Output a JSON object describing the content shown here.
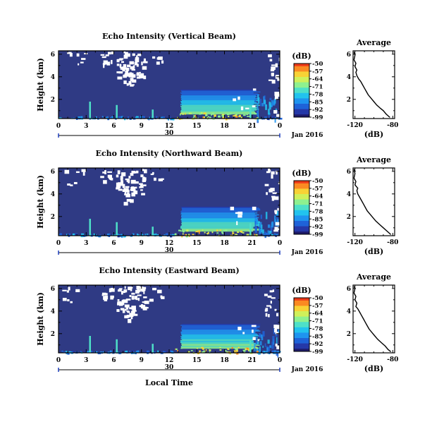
{
  "colors": {
    "background_fill": "#2f3a84",
    "missing_data": "#ffffff",
    "colormap": [
      "#1e1b6a",
      "#2538a8",
      "#1f63d8",
      "#1f94ef",
      "#22c3ee",
      "#4ee0c8",
      "#8ef18f",
      "#d0f05a",
      "#f8d235",
      "#fb8a22",
      "#ee3a18"
    ]
  },
  "chart_data": [
    {
      "type": "heatmap",
      "title": "Echo Intensity (Vertical Beam)",
      "ylabel": "Height (km)",
      "xlabel": "",
      "x_ticks": [
        "0",
        "3",
        "6",
        "9",
        "12",
        "15",
        "18",
        "21",
        "0"
      ],
      "xlim_hours": [
        0,
        24
      ],
      "date_label": "30",
      "month_label": "Jan 2016",
      "y_ticks": [
        "2",
        "4",
        "6"
      ],
      "ylim_km": [
        0.3,
        6.3
      ],
      "colorbar": {
        "label": "(dB)",
        "ticks": [
          "-50",
          "-57",
          "-64",
          "-71",
          "-78",
          "-85",
          "-92",
          "-99"
        ],
        "range": [
          -99,
          -50
        ]
      },
      "average_profile": {
        "title": "Average",
        "xlabel": "(dB)",
        "x_ticks": [
          "-120",
          "-80"
        ],
        "y_ticks": [
          "2",
          "4",
          "6"
        ],
        "xlim": [
          -122,
          -78
        ],
        "points": [
          [
            -83,
            0.4
          ],
          [
            -87,
            0.7
          ],
          [
            -90,
            1.0
          ],
          [
            -93,
            1.2
          ],
          [
            -97,
            1.5
          ],
          [
            -100,
            1.8
          ],
          [
            -103,
            2.1
          ],
          [
            -106,
            2.4
          ],
          [
            -108,
            2.7
          ],
          [
            -110,
            3.0
          ],
          [
            -112,
            3.3
          ],
          [
            -114,
            3.6
          ],
          [
            -116,
            3.8
          ],
          [
            -118,
            4.1
          ],
          [
            -119,
            4.4
          ],
          [
            -118,
            4.6
          ],
          [
            -120,
            4.9
          ],
          [
            -119,
            5.2
          ],
          [
            -121,
            5.5
          ],
          [
            -120,
            5.9
          ],
          [
            -121,
            6.2
          ]
        ]
      }
    },
    {
      "type": "heatmap",
      "title": "Echo Intensity (Northward Beam)",
      "ylabel": "Height (km)",
      "xlabel": "",
      "x_ticks": [
        "0",
        "3",
        "6",
        "9",
        "12",
        "15",
        "18",
        "21",
        "0"
      ],
      "xlim_hours": [
        0,
        24
      ],
      "date_label": "30",
      "month_label": "Jan 2016",
      "y_ticks": [
        "2",
        "4",
        "6"
      ],
      "ylim_km": [
        0.3,
        6.3
      ],
      "colorbar": {
        "label": "(dB)",
        "ticks": [
          "-50",
          "-57",
          "-64",
          "-71",
          "-78",
          "-85",
          "-92",
          "-99"
        ],
        "range": [
          -99,
          -50
        ]
      },
      "average_profile": {
        "title": "Average",
        "xlabel": "(dB)",
        "x_ticks": [
          "-120",
          "-80"
        ],
        "y_ticks": [
          "2",
          "4",
          "6"
        ],
        "xlim": [
          -122,
          -78
        ],
        "points": [
          [
            -82,
            0.4
          ],
          [
            -86,
            0.7
          ],
          [
            -90,
            1.0
          ],
          [
            -94,
            1.3
          ],
          [
            -98,
            1.6
          ],
          [
            -101,
            1.9
          ],
          [
            -104,
            2.2
          ],
          [
            -107,
            2.5
          ],
          [
            -109,
            2.8
          ],
          [
            -111,
            3.1
          ],
          [
            -113,
            3.4
          ],
          [
            -115,
            3.7
          ],
          [
            -117,
            4.0
          ],
          [
            -118,
            4.3
          ],
          [
            -117,
            4.5
          ],
          [
            -120,
            4.8
          ],
          [
            -119,
            5.1
          ],
          [
            -121,
            5.4
          ],
          [
            -120,
            5.8
          ],
          [
            -121,
            6.2
          ]
        ]
      }
    },
    {
      "type": "heatmap",
      "title": "Echo Intensity (Eastward Beam)",
      "ylabel": "Height (km)",
      "xlabel": "Local Time",
      "x_ticks": [
        "0",
        "3",
        "6",
        "9",
        "12",
        "15",
        "18",
        "21",
        "0"
      ],
      "xlim_hours": [
        0,
        24
      ],
      "date_label": "30",
      "month_label": "Jan 2016",
      "y_ticks": [
        "2",
        "4",
        "6"
      ],
      "ylim_km": [
        0.3,
        6.3
      ],
      "colorbar": {
        "label": "(dB)",
        "ticks": [
          "-50",
          "-57",
          "-64",
          "-71",
          "-78",
          "-85",
          "-92",
          "-99"
        ],
        "range": [
          -99,
          -50
        ]
      },
      "average_profile": {
        "title": "Average",
        "xlabel": "(dB)",
        "x_ticks": [
          "-120",
          "-80"
        ],
        "y_ticks": [
          "2",
          "4",
          "6"
        ],
        "xlim": [
          -122,
          -78
        ],
        "points": [
          [
            -82,
            0.4
          ],
          [
            -85,
            0.6
          ],
          [
            -88,
            0.9
          ],
          [
            -92,
            1.2
          ],
          [
            -96,
            1.5
          ],
          [
            -99,
            1.8
          ],
          [
            -102,
            2.1
          ],
          [
            -105,
            2.4
          ],
          [
            -107,
            2.7
          ],
          [
            -109,
            3.0
          ],
          [
            -111,
            3.3
          ],
          [
            -113,
            3.6
          ],
          [
            -115,
            3.9
          ],
          [
            -117,
            4.2
          ],
          [
            -119,
            4.4
          ],
          [
            -118,
            4.7
          ],
          [
            -120,
            5.0
          ],
          [
            -119,
            5.3
          ],
          [
            -121,
            5.6
          ],
          [
            -120,
            6.0
          ],
          [
            -121,
            6.2
          ]
        ]
      }
    }
  ]
}
